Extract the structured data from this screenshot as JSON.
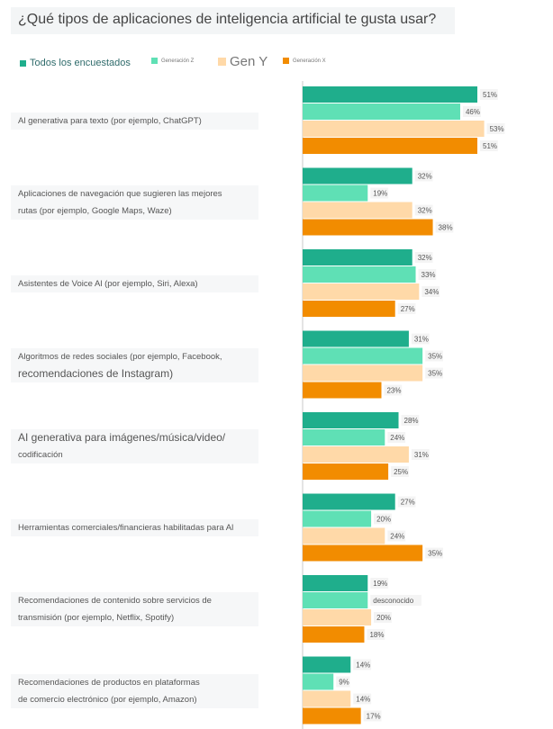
{
  "title": "¿Qué tipos de aplicaciones de inteligencia artificial te gusta usar?",
  "chart_data": {
    "type": "bar",
    "orientation": "horizontal",
    "categories": [
      "Al generativa para texto (por ejemplo, ChatGPT)",
      "Aplicaciones de navegación que sugieren las mejores rutas (por ejemplo, Google Maps, Waze)",
      "Asistentes de Voice Al (por ejemplo, Siri, Alexa)",
      "Algoritmos de redes sociales (por ejemplo, Facebook, recomendaciones de Instagram)",
      "AI generativa para imágenes/música/video/ codificación",
      "Herramientas comerciales/financieras habilitadas para Al",
      "Recomendaciones de contenido sobre servicios de transmisión (por ejemplo, Netflix, Spotify)",
      "Recomendaciones de productos en plataformas de comercio electrónico (por ejemplo, Amazon)"
    ],
    "category_lines": [
      [
        "Al generativa para texto (por ejemplo, ChatGPT)"
      ],
      [
        "Aplicaciones de navegación que sugieren las mejores",
        "rutas (por ejemplo, Google Maps, Waze)"
      ],
      [
        "Asistentes de Voice Al (por ejemplo, Siri, Alexa)"
      ],
      [
        "Algoritmos de redes sociales (por ejemplo, Facebook,",
        "recomendaciones de Instagram)"
      ],
      [
        "AI generativa para imágenes/música/video/",
        "codificación"
      ],
      [
        "Herramientas comerciales/financieras habilitadas para Al"
      ],
      [
        "Recomendaciones de contenido sobre servicios de",
        "transmisión (por ejemplo, Netflix, Spotify)"
      ],
      [
        "Recomendaciones de productos en plataformas",
        "de comercio electrónico (por ejemplo, Amazon)"
      ]
    ],
    "series": [
      {
        "name": "Todos los encuestados",
        "color": "#1fae8c",
        "values": [
          51,
          32,
          32,
          31,
          28,
          27,
          19,
          14
        ]
      },
      {
        "name": "Generación Z",
        "color": "#5fe0b5",
        "values": [
          46,
          19,
          33,
          35,
          24,
          20,
          null,
          9
        ]
      },
      {
        "name": "Gen Y",
        "color": "#ffd9a8",
        "values": [
          53,
          32,
          34,
          35,
          31,
          24,
          20,
          14
        ]
      },
      {
        "name": "Generación X",
        "color": "#f28c00",
        "values": [
          51,
          38,
          27,
          23,
          25,
          35,
          18,
          17
        ]
      }
    ],
    "value_labels": [
      [
        "51%",
        "46%",
        "53%",
        "51%"
      ],
      [
        "32%",
        "19%",
        "32%",
        "38%"
      ],
      [
        "32%",
        "33%",
        "34%",
        "27%"
      ],
      [
        "31%",
        "35%",
        "35%",
        "23%"
      ],
      [
        "28%",
        "24%",
        "31%",
        "25%"
      ],
      [
        "27%",
        "20%",
        "24%",
        "35%"
      ],
      [
        "19%",
        "desconocido",
        "20%",
        "18%"
      ],
      [
        "14%",
        "9%",
        "14%",
        "17%"
      ]
    ],
    "xlim": [
      0,
      55
    ],
    "legend_position": "top",
    "grid": false
  }
}
